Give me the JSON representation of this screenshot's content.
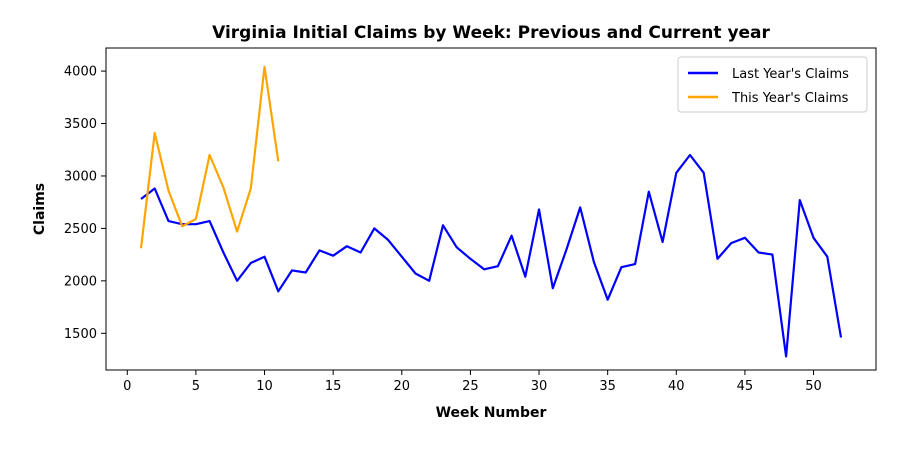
{
  "chart_data": {
    "type": "line",
    "title": "Virginia Initial Claims by Week: Previous and Current year",
    "xlabel": "Week Number",
    "ylabel": "Claims",
    "xlim": [
      -1.55,
      54.55
    ],
    "ylim": [
      1150,
      4220
    ],
    "xticks": [
      0,
      5,
      10,
      15,
      20,
      25,
      30,
      35,
      40,
      45,
      50
    ],
    "yticks": [
      1500,
      2000,
      2500,
      3000,
      3500,
      4000
    ],
    "grid": false,
    "legend_position": "top-right",
    "series": [
      {
        "name": "Last Year's Claims",
        "color": "#0000ff",
        "x": [
          1,
          2,
          3,
          4,
          5,
          6,
          7,
          8,
          9,
          10,
          11,
          12,
          13,
          14,
          15,
          16,
          17,
          18,
          19,
          20,
          21,
          22,
          23,
          24,
          25,
          26,
          27,
          28,
          29,
          30,
          31,
          32,
          33,
          34,
          35,
          36,
          37,
          38,
          39,
          40,
          41,
          42,
          43,
          44,
          45,
          46,
          47,
          48,
          49,
          50,
          51,
          52
        ],
        "values": [
          2780,
          2880,
          2570,
          2540,
          2540,
          2570,
          2270,
          2000,
          2170,
          2230,
          1900,
          2100,
          2080,
          2290,
          2240,
          2330,
          2270,
          2500,
          2390,
          2230,
          2070,
          2000,
          2530,
          2320,
          2210,
          2110,
          2140,
          2430,
          2040,
          2680,
          1930,
          2300,
          2700,
          2180,
          1820,
          2130,
          2160,
          2850,
          2370,
          3030,
          3200,
          3030,
          2210,
          2360,
          2410,
          2270,
          2250,
          1280,
          2770,
          2410,
          2230,
          1460
        ]
      },
      {
        "name": "This Year's Claims",
        "color": "#ffa500",
        "x": [
          1,
          2,
          3,
          4,
          5,
          6,
          7,
          8,
          9,
          10,
          11
        ],
        "values": [
          2310,
          3410,
          2860,
          2520,
          2590,
          3200,
          2890,
          2470,
          2880,
          4040,
          3140
        ]
      }
    ]
  }
}
